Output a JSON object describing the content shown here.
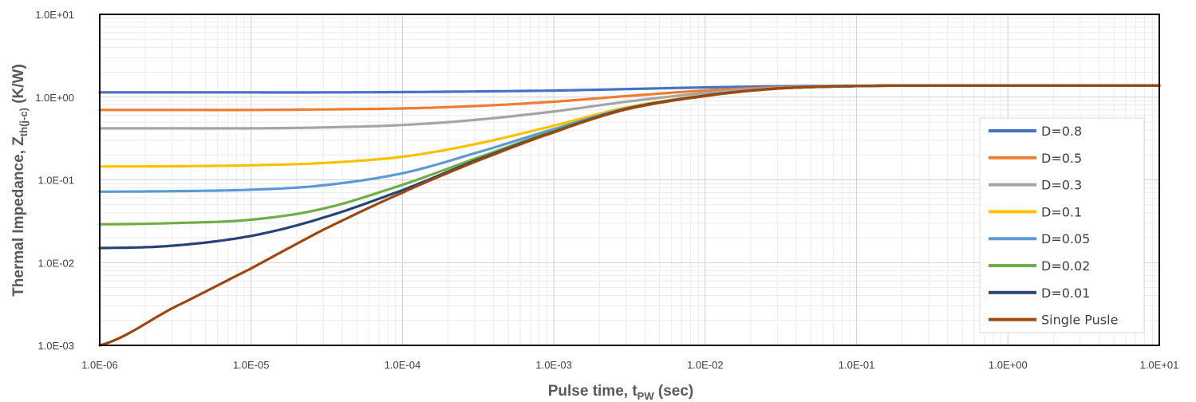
{
  "chart_data": {
    "type": "line",
    "xscale": "log",
    "yscale": "log",
    "xlim": [
      1e-06,
      10
    ],
    "ylim": [
      0.001,
      10
    ],
    "grid": true,
    "legend_position": "right",
    "xlabel": {
      "main": "Pulse time, t",
      "sub": "PW",
      "suffix": " (sec)"
    },
    "ylabel": {
      "main": "Thermal Impedance, Z",
      "sub": "th(j-c)",
      "suffix": " (K/W)"
    },
    "x_ticks": [
      {
        "value": 1e-06,
        "label": "1.0E-06"
      },
      {
        "value": 1e-05,
        "label": "1.0E-05"
      },
      {
        "value": 0.0001,
        "label": "1.0E-04"
      },
      {
        "value": 0.001,
        "label": "1.0E-03"
      },
      {
        "value": 0.01,
        "label": "1.0E-02"
      },
      {
        "value": 0.1,
        "label": "1.0E-01"
      },
      {
        "value": 1,
        "label": "1.0E+00"
      },
      {
        "value": 10,
        "label": "1.0E+01"
      }
    ],
    "y_ticks": [
      {
        "value": 0.001,
        "label": "1.0E-03"
      },
      {
        "value": 0.01,
        "label": "1.0E-02"
      },
      {
        "value": 0.1,
        "label": "1.0E-01"
      },
      {
        "value": 1,
        "label": "1.0E+00"
      },
      {
        "value": 10,
        "label": "1.0E+01"
      }
    ],
    "x": [
      1e-06,
      3e-06,
      1e-05,
      3e-05,
      0.0001,
      0.0003,
      0.001,
      0.003,
      0.01,
      0.03,
      0.1,
      0.3,
      1,
      3,
      10
    ],
    "series": [
      {
        "name": "D=0.8",
        "color": "#4472C4",
        "values": [
          1.14,
          1.14,
          1.14,
          1.14,
          1.15,
          1.17,
          1.2,
          1.25,
          1.31,
          1.35,
          1.37,
          1.38,
          1.38,
          1.38,
          1.38
        ]
      },
      {
        "name": "D=0.5",
        "color": "#ED7D31",
        "values": [
          0.7,
          0.7,
          0.7,
          0.71,
          0.73,
          0.78,
          0.88,
          1.03,
          1.2,
          1.31,
          1.36,
          1.38,
          1.38,
          1.38,
          1.38
        ]
      },
      {
        "name": "D=0.3",
        "color": "#A5A5A5",
        "values": [
          0.42,
          0.42,
          0.42,
          0.43,
          0.46,
          0.53,
          0.67,
          0.88,
          1.12,
          1.29,
          1.36,
          1.38,
          1.38,
          1.38,
          1.38
        ]
      },
      {
        "name": "D=0.1",
        "color": "#FFC000",
        "values": [
          0.145,
          0.146,
          0.15,
          0.16,
          0.19,
          0.27,
          0.45,
          0.75,
          1.05,
          1.27,
          1.36,
          1.38,
          1.38,
          1.38,
          1.38
        ]
      },
      {
        "name": "D=0.05",
        "color": "#5B9BD5",
        "values": [
          0.072,
          0.073,
          0.076,
          0.086,
          0.12,
          0.21,
          0.41,
          0.73,
          1.04,
          1.27,
          1.36,
          1.38,
          1.38,
          1.38,
          1.38
        ]
      },
      {
        "name": "D=0.02",
        "color": "#70AD47",
        "values": [
          0.029,
          0.03,
          0.033,
          0.045,
          0.087,
          0.18,
          0.39,
          0.72,
          1.04,
          1.27,
          1.36,
          1.38,
          1.38,
          1.38,
          1.38
        ]
      },
      {
        "name": "D=0.01",
        "color": "#264478",
        "values": [
          0.015,
          0.016,
          0.021,
          0.035,
          0.075,
          0.17,
          0.38,
          0.72,
          1.04,
          1.27,
          1.36,
          1.38,
          1.38,
          1.38,
          1.38
        ]
      },
      {
        "name": "Single Pusle",
        "color": "#9E480E",
        "values": [
          0.001,
          0.0028,
          0.0085,
          0.025,
          0.07,
          0.165,
          0.375,
          0.71,
          1.03,
          1.27,
          1.36,
          1.38,
          1.38,
          1.38,
          1.38
        ]
      }
    ]
  }
}
